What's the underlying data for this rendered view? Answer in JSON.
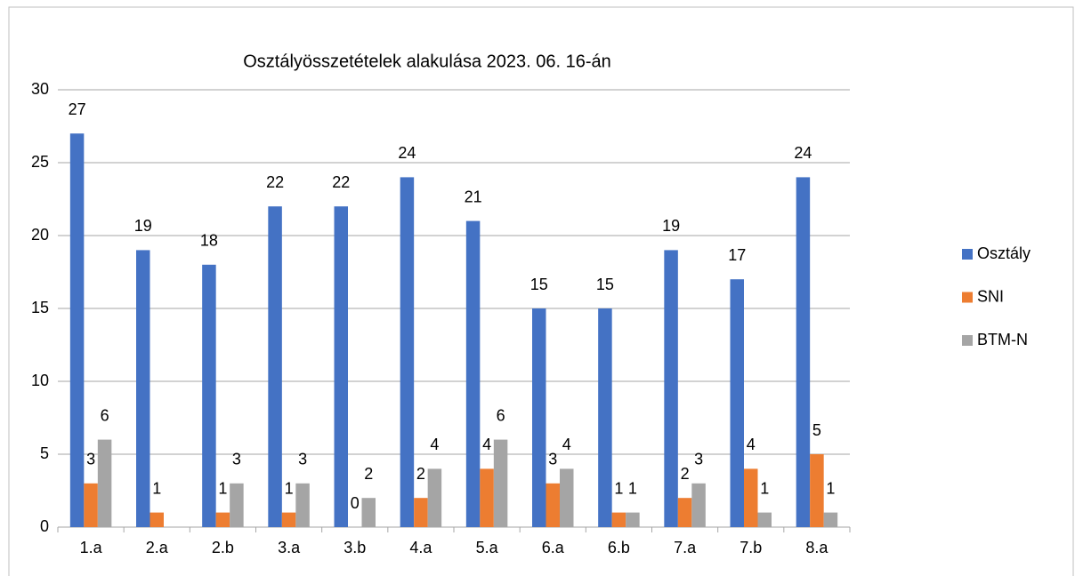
{
  "chart_data": {
    "type": "bar",
    "title": "Osztályösszetételek alakulása 2023. 06. 16-án",
    "categories": [
      "1.a",
      "2.a",
      "2.b",
      "3.a",
      "3.b",
      "4.a",
      "5.a",
      "6.a",
      "6.b",
      "7.a",
      "7.b",
      "8.a"
    ],
    "series": [
      {
        "name": "Osztály",
        "color": "#4472c4",
        "values": [
          27,
          19,
          18,
          22,
          22,
          24,
          21,
          15,
          15,
          19,
          17,
          24
        ]
      },
      {
        "name": "SNI",
        "color": "#ed7d31",
        "values": [
          3,
          1,
          1,
          1,
          0,
          2,
          4,
          3,
          1,
          2,
          4,
          5
        ]
      },
      {
        "name": "BTM-N",
        "color": "#a5a5a5",
        "values": [
          6,
          null,
          3,
          3,
          2,
          4,
          6,
          4,
          1,
          3,
          1,
          1
        ]
      }
    ],
    "ylim": [
      0,
      30
    ],
    "yticks": [
      0,
      5,
      10,
      15,
      20,
      25,
      30
    ],
    "grid": true,
    "legend": "right"
  }
}
